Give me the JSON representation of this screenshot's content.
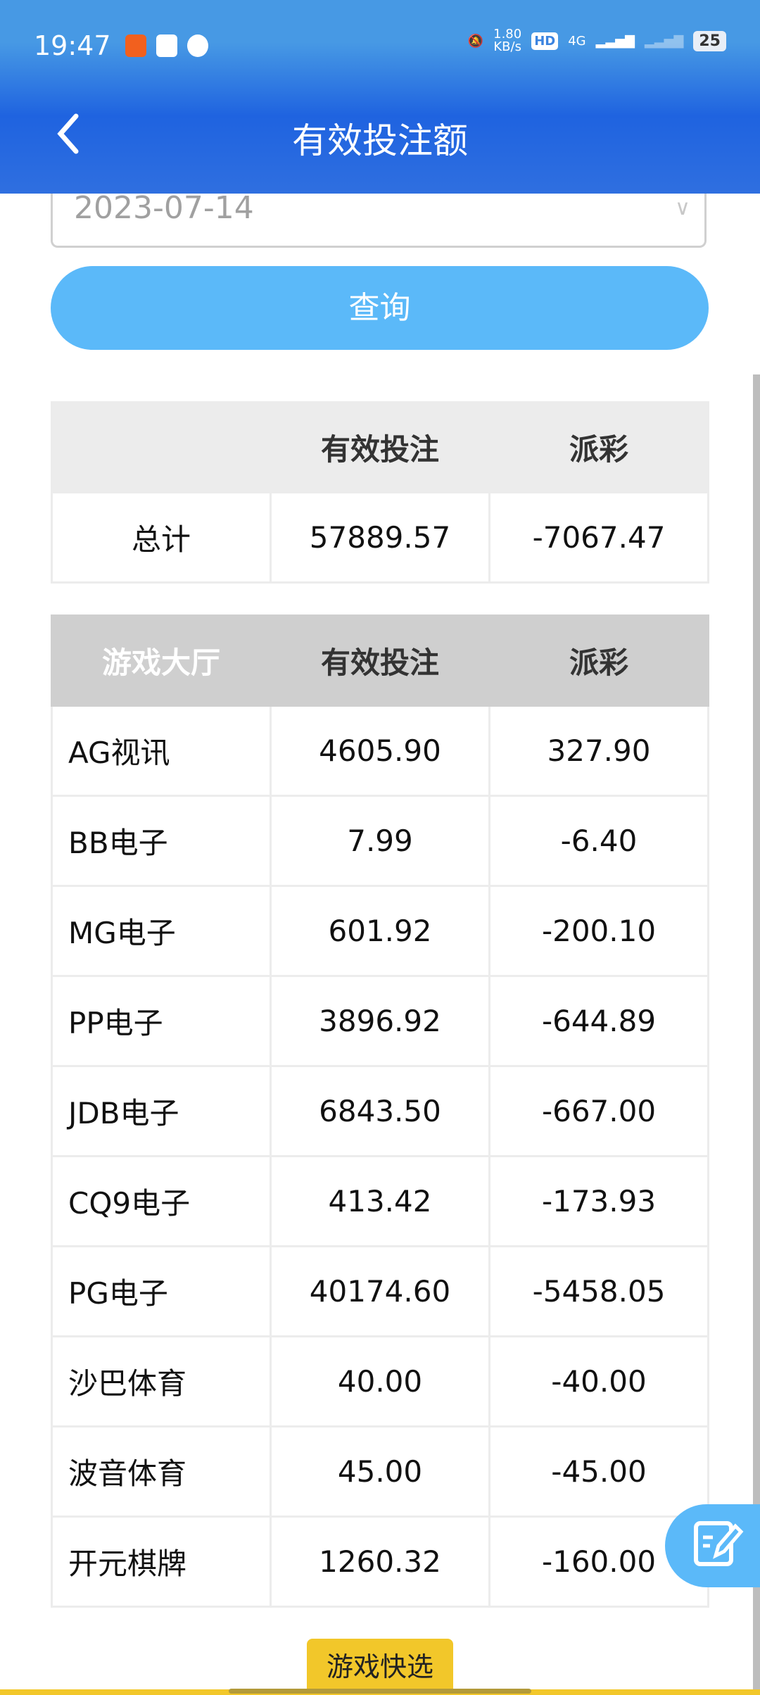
{
  "status_bar": {
    "time": "19:47",
    "net_speed": "1.80",
    "net_unit": "KB/s",
    "hd": "HD",
    "network": "4G",
    "battery": "25"
  },
  "header": {
    "title": "有效投注额"
  },
  "filter": {
    "date": "2023-07-14",
    "query_label": "查询"
  },
  "summary": {
    "headers": [
      "",
      "有效投注",
      "派彩"
    ],
    "rows": [
      [
        "总计",
        "57889.57",
        "-7067.47"
      ]
    ]
  },
  "games": {
    "headers": [
      "游戏大厅",
      "有效投注",
      "派彩"
    ],
    "rows": [
      [
        "AG视讯",
        "4605.90",
        "327.90"
      ],
      [
        "BB电子",
        "7.99",
        "-6.40"
      ],
      [
        "MG电子",
        "601.92",
        "-200.10"
      ],
      [
        "PP电子",
        "3896.92",
        "-644.89"
      ],
      [
        "JDB电子",
        "6843.50",
        "-667.00"
      ],
      [
        "CQ9电子",
        "413.42",
        "-173.93"
      ],
      [
        "PG电子",
        "40174.60",
        "-5458.05"
      ],
      [
        "沙巴体育",
        "40.00",
        "-40.00"
      ],
      [
        "波音体育",
        "45.00",
        "-45.00"
      ],
      [
        "开元棋牌",
        "1260.32",
        "-160.00"
      ]
    ]
  },
  "quick_select_label": "游戏快选",
  "colors": {
    "header": "#1f63e0",
    "button": "#5bb9f9",
    "quick": "#f2c72a"
  }
}
